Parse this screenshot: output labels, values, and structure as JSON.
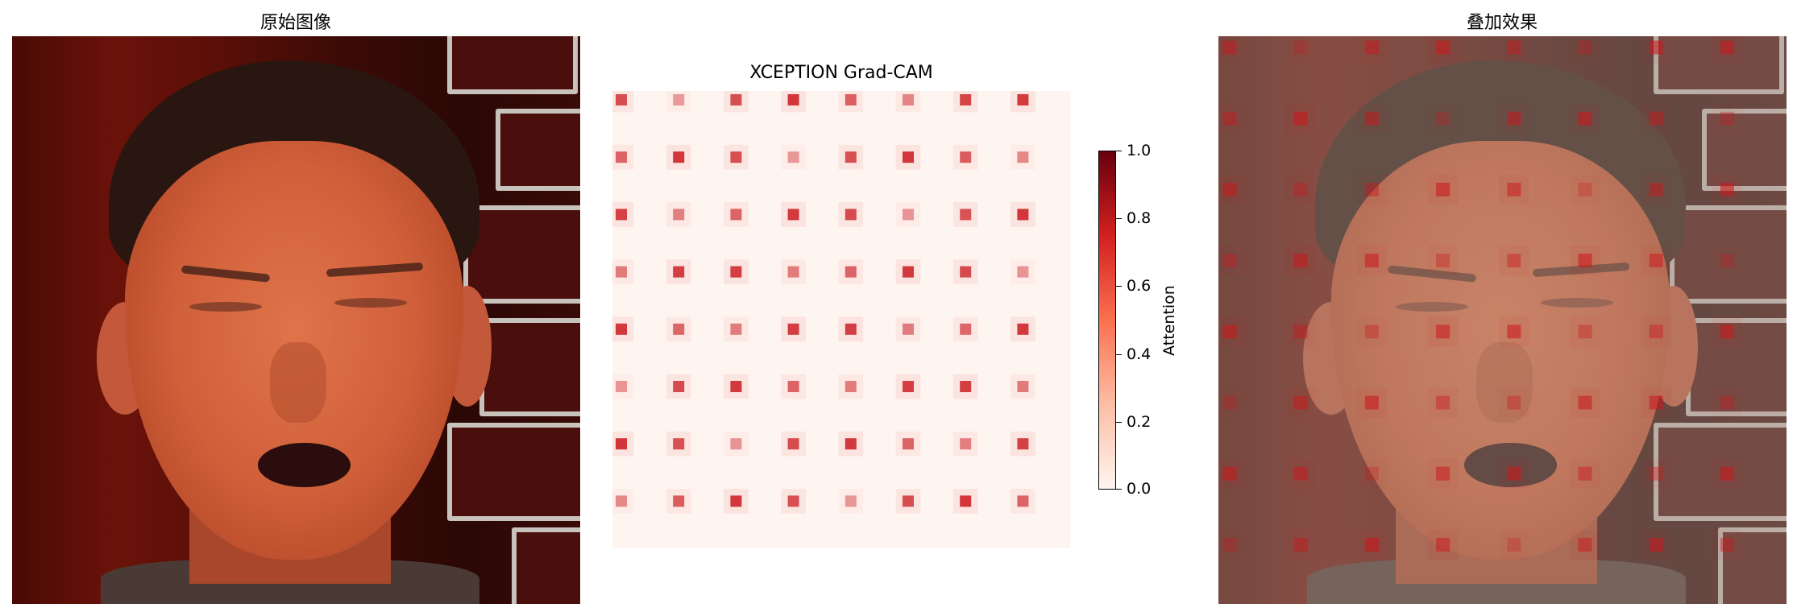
{
  "panels": {
    "left_title": "原始图像",
    "middle_title": "XCEPTION Grad-CAM",
    "right_title": "叠加效果"
  },
  "colorbar": {
    "label": "Attention",
    "ticks": [
      "1.0",
      "0.8",
      "0.6",
      "0.4",
      "0.2",
      "0.0"
    ],
    "colormap": "Reds",
    "range": [
      0.0,
      1.0
    ]
  },
  "heatmap": {
    "grid_rows": 8,
    "grid_cols": 8,
    "base_color": "#fff5f0",
    "hot_color": "#cb181d"
  },
  "colors": {
    "background": "#ffffff",
    "skin": "#d0603a",
    "backdrop": "#5c0f08",
    "overlay_tint": "#aa968c"
  }
}
